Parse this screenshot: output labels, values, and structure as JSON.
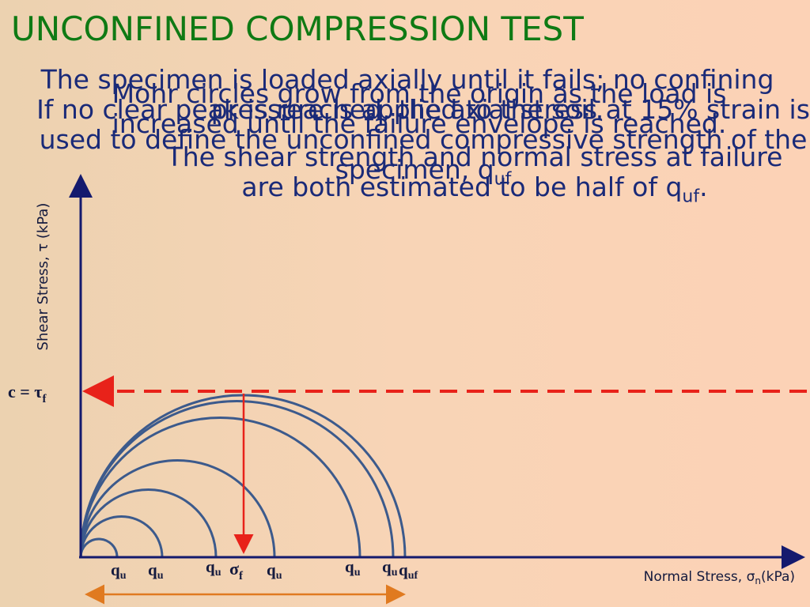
{
  "header": {
    "title": "UNCONFINED COMPRESSION TEST"
  },
  "paragraphs": [
    {
      "text": "The specimen is loaded axially until it fails; no confining pressure is applied to the soil."
    },
    {
      "text": "If no clear peak is reached, the axial stress at 15% strain is used to define the unconfined compressive strength of the specimen, q",
      "sub": "uf"
    },
    {
      "text": "The shear strength and normal stress at failure are both estimated to be half of q",
      "sub": "uf",
      "end": "."
    },
    {
      "text": "Mohr circles grow from the origin as the load is increased until the failure envelope is reached."
    }
  ],
  "axes": {
    "y_label": "Shear Stress, τ (kPa)",
    "x_label": {
      "main": "Normal Stress, σ",
      "sub": "n",
      "tail": "(kPa)"
    }
  },
  "cohesion_label": {
    "main": "c = τ",
    "sub": "f"
  },
  "sigma_label": {
    "main": "σ",
    "sub": "f"
  },
  "x_labels": [
    {
      "main": "q",
      "sub": "u"
    },
    {
      "main": "q",
      "sub": "u"
    },
    {
      "main": "q",
      "sub": "u"
    },
    {
      "main": "q",
      "sub": "u"
    },
    {
      "main": "q",
      "sub": "u"
    },
    {
      "main": "q",
      "sub": "u"
    },
    {
      "main": "q",
      "sub": "uf"
    }
  ]
}
